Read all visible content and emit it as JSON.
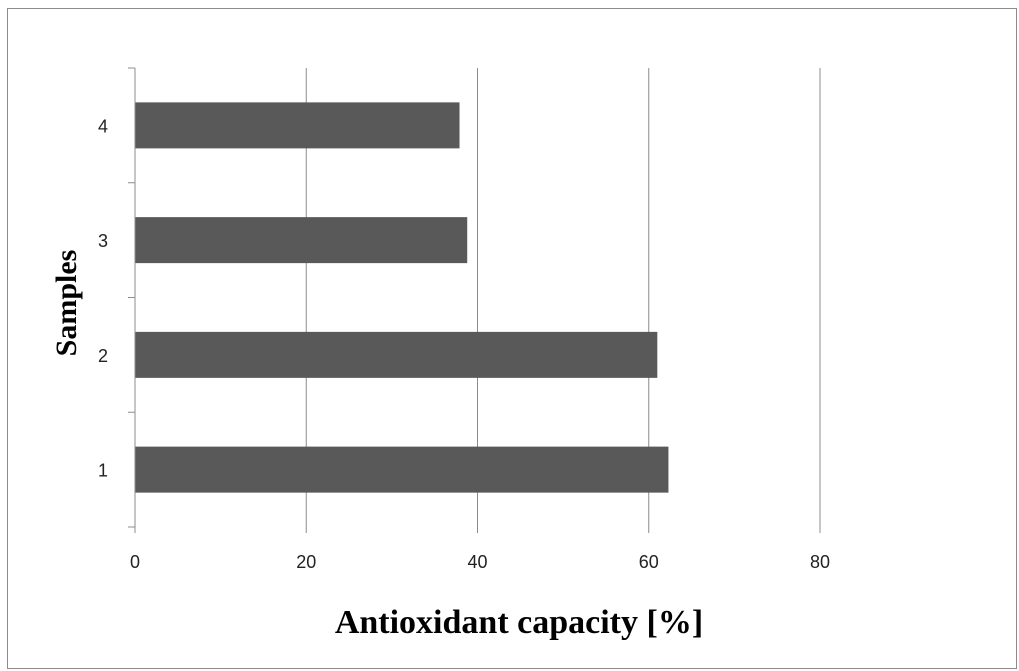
{
  "chart_data": {
    "type": "bar",
    "orientation": "horizontal",
    "categories": [
      "1",
      "2",
      "3",
      "4"
    ],
    "values": [
      62.3,
      61.0,
      38.8,
      37.9
    ],
    "xlabel": "Antioxidant capacity [%]",
    "ylabel": "Samples",
    "xlim": [
      0,
      80
    ],
    "xticks": [
      "0",
      "20",
      "40",
      "60",
      "80"
    ],
    "grid": "vertical",
    "legend": "none",
    "colors": {
      "bar": "#595959",
      "grid": "#8c8c8c",
      "axis": "#8c8c8c"
    }
  }
}
